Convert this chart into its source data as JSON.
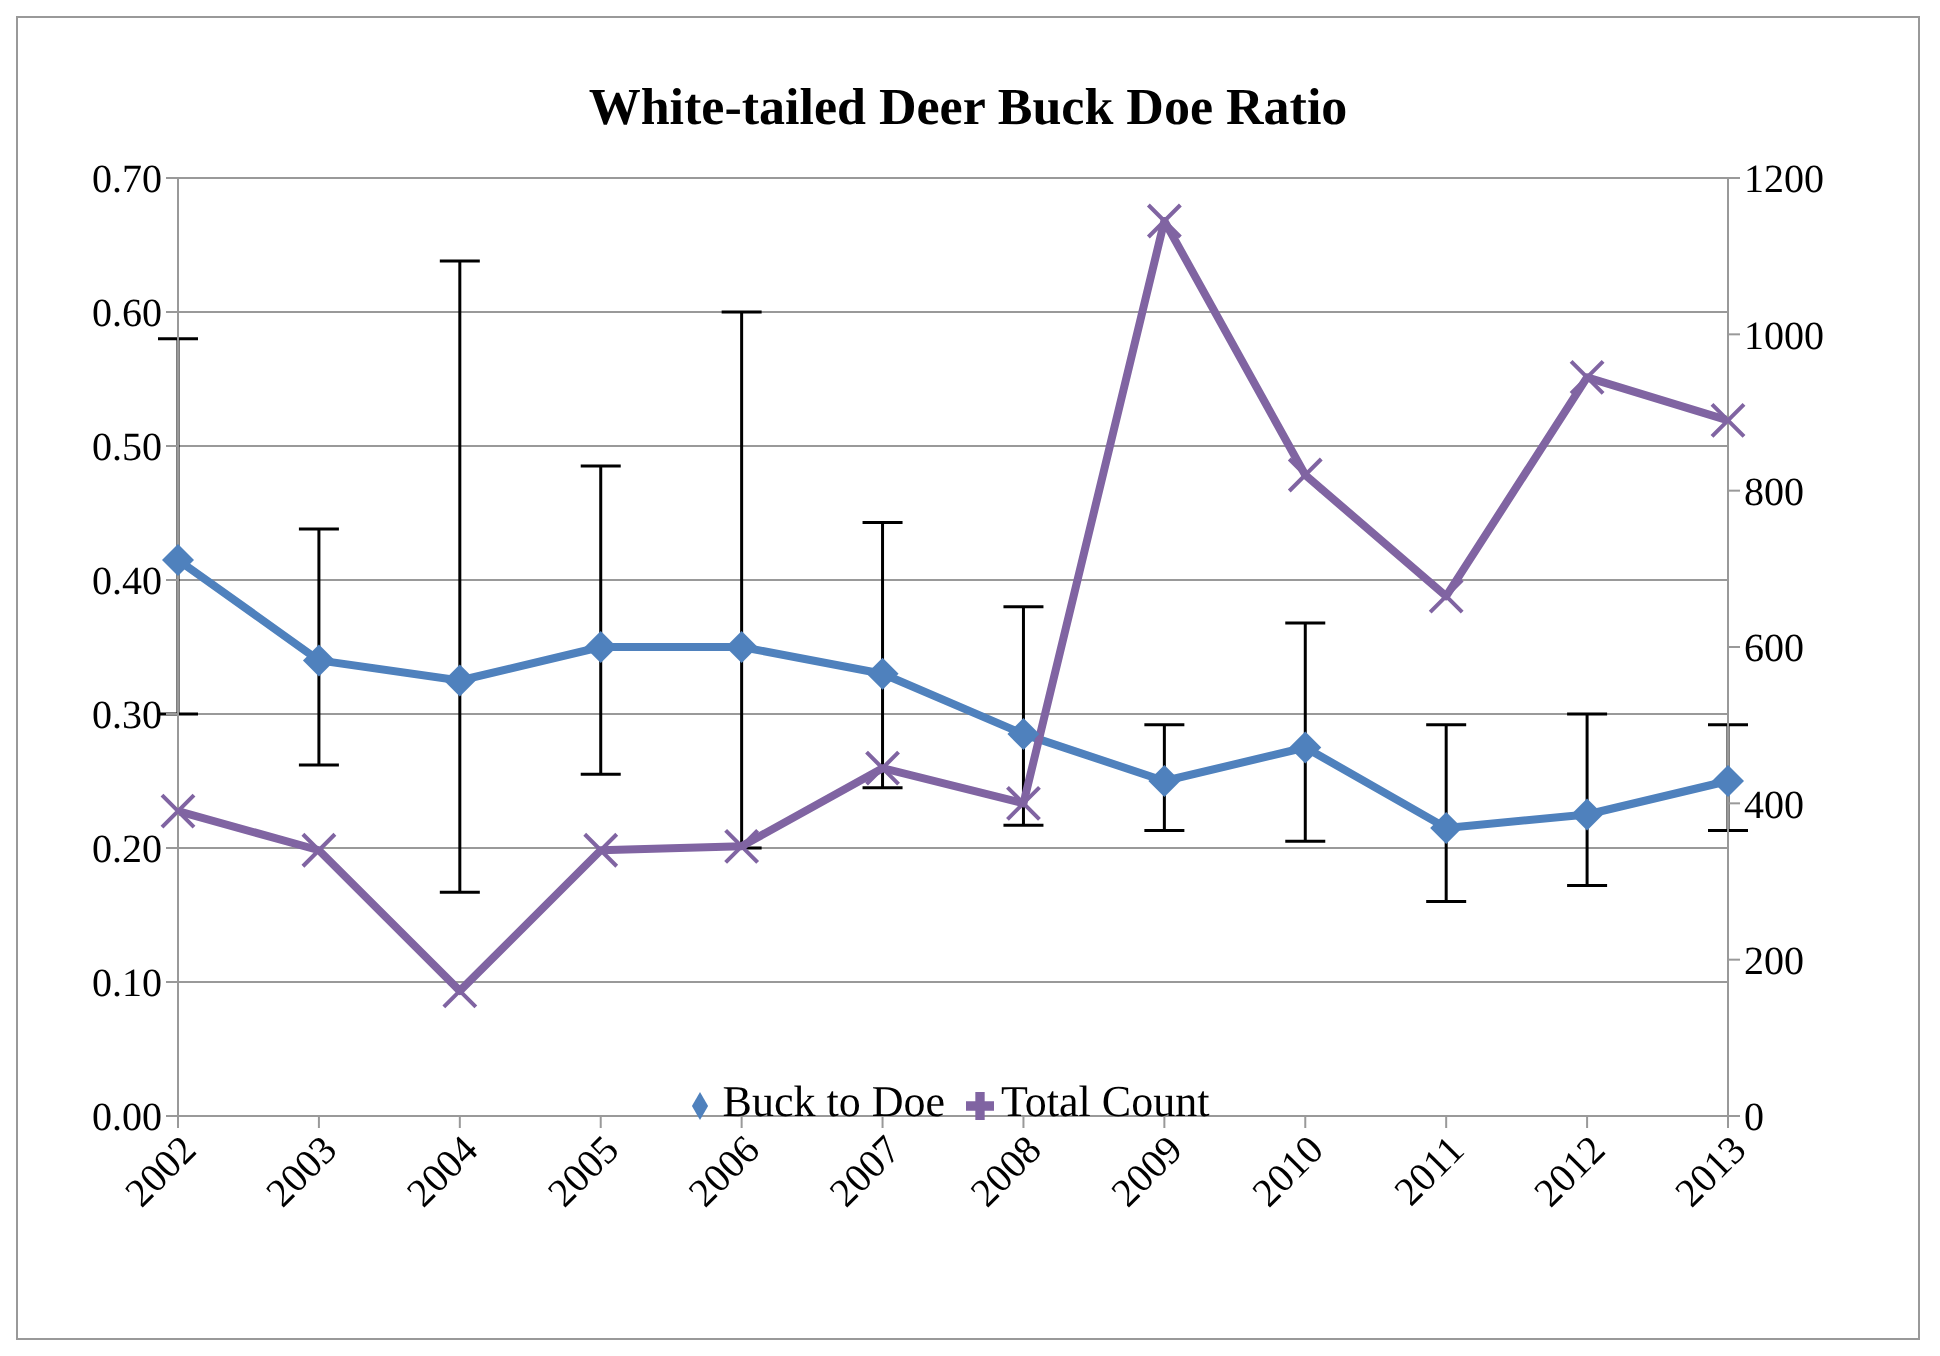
{
  "chart_data": {
    "type": "line",
    "title": "White-tailed  Deer Buck Doe Ratio",
    "categories": [
      "2002",
      "2003",
      "2004",
      "2005",
      "2006",
      "2007",
      "2008",
      "2009",
      "2010",
      "2011",
      "2012",
      "2013"
    ],
    "series": [
      {
        "name": "Buck to Doe",
        "color": "#4f81bd",
        "marker": "diamond",
        "values": [
          0.415,
          0.34,
          0.325,
          0.35,
          0.35,
          0.33,
          0.285,
          0.25,
          0.275,
          0.215,
          0.225,
          0.25
        ],
        "errors": [
          [
            0.3,
            0.58
          ],
          [
            0.262,
            0.438
          ],
          [
            0.167,
            0.638
          ],
          [
            0.255,
            0.485
          ],
          [
            0.2,
            0.6
          ],
          [
            0.245,
            0.443
          ],
          [
            0.217,
            0.38
          ],
          [
            0.213,
            0.292
          ],
          [
            0.205,
            0.368
          ],
          [
            0.16,
            0.292
          ],
          [
            0.172,
            0.3
          ],
          [
            0.213,
            0.292
          ]
        ]
      },
      {
        "name": "Total Count",
        "color": "#8064a2",
        "marker": "cross",
        "axis": "y2",
        "values": [
          390,
          340,
          160,
          340,
          345,
          445,
          400,
          1145,
          820,
          665,
          945,
          890
        ]
      }
    ],
    "ylim": [
      0,
      0.7
    ],
    "yticks": [
      {
        "value": 0,
        "label": "0.00"
      },
      {
        "value": 0.1,
        "label": "0.10"
      },
      {
        "value": 0.2,
        "label": "0.20"
      },
      {
        "value": 0.3,
        "label": "0.30"
      },
      {
        "value": 0.4,
        "label": "0.40"
      },
      {
        "value": 0.5,
        "label": "0.50"
      },
      {
        "value": 0.6,
        "label": "0.60"
      },
      {
        "value": 0.7,
        "label": "0.70"
      }
    ],
    "y2lim": [
      0,
      1200
    ],
    "y2ticks": [
      0,
      200,
      400,
      600,
      800,
      1000,
      1200
    ],
    "grid": "y",
    "legend": "bottom",
    "line_style": "solid"
  }
}
